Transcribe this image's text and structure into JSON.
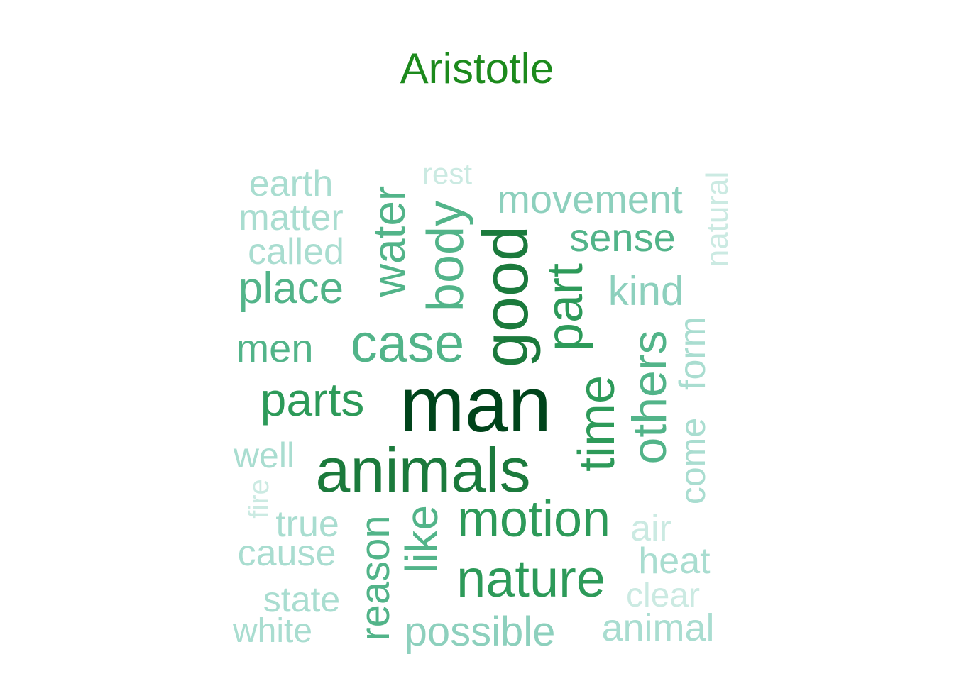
{
  "title": "Aristotle",
  "title_color": "#1c8a1c",
  "chart_data": {
    "type": "wordcloud",
    "title": "Aristotle",
    "palette": [
      "#00441b",
      "#1b7a3c",
      "#2d9a59",
      "#52b489",
      "#8dd0bd",
      "#a9ddd0",
      "#cbeae2"
    ],
    "words": [
      {
        "text": "man",
        "frequency": 100
      },
      {
        "text": "good",
        "frequency": 78
      },
      {
        "text": "animals",
        "frequency": 74
      },
      {
        "text": "time",
        "frequency": 70
      },
      {
        "text": "part",
        "frequency": 64
      },
      {
        "text": "case",
        "frequency": 64
      },
      {
        "text": "nature",
        "frequency": 62
      },
      {
        "text": "body",
        "frequency": 62
      },
      {
        "text": "motion",
        "frequency": 60
      },
      {
        "text": "others",
        "frequency": 60
      },
      {
        "text": "parts",
        "frequency": 57
      },
      {
        "text": "water",
        "frequency": 57
      },
      {
        "text": "like",
        "frequency": 55
      },
      {
        "text": "place",
        "frequency": 52
      },
      {
        "text": "reason",
        "frequency": 51
      },
      {
        "text": "possible",
        "frequency": 49
      },
      {
        "text": "kind",
        "frequency": 49
      },
      {
        "text": "sense",
        "frequency": 48
      },
      {
        "text": "men",
        "frequency": 47
      },
      {
        "text": "movement",
        "frequency": 46
      },
      {
        "text": "come",
        "frequency": 44
      },
      {
        "text": "animal",
        "frequency": 44
      },
      {
        "text": "called",
        "frequency": 44
      },
      {
        "text": "form",
        "frequency": 43
      },
      {
        "text": "cause",
        "frequency": 43
      },
      {
        "text": "true",
        "frequency": 43
      },
      {
        "text": "matter",
        "frequency": 43
      },
      {
        "text": "earth",
        "frequency": 43
      },
      {
        "text": "heat",
        "frequency": 42
      },
      {
        "text": "well",
        "frequency": 42
      },
      {
        "text": "state",
        "frequency": 42
      },
      {
        "text": "white",
        "frequency": 41
      },
      {
        "text": "air",
        "frequency": 41
      },
      {
        "text": "clear",
        "frequency": 40
      },
      {
        "text": "natural",
        "frequency": 37
      },
      {
        "text": "rest",
        "frequency": 35
      },
      {
        "text": "fire",
        "frequency": 33
      }
    ]
  }
}
